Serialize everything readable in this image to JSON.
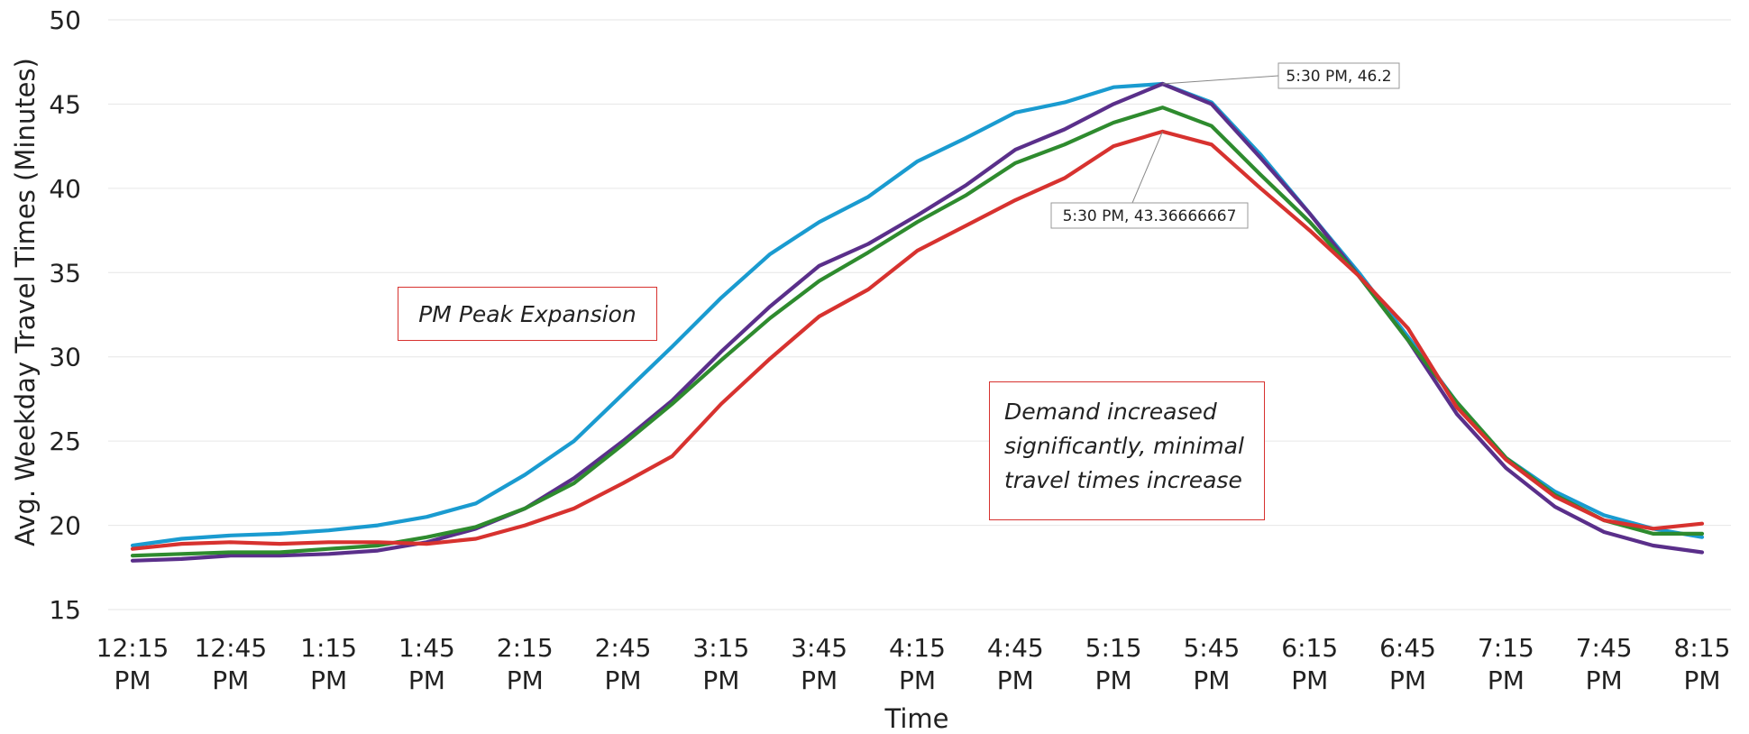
{
  "chart_data": {
    "type": "line",
    "title": "",
    "xlabel": "Time",
    "ylabel": "Avg. Weekday Travel Times (Minutes)",
    "ylim": [
      15,
      50
    ],
    "yticks": [
      15,
      20,
      25,
      30,
      35,
      40,
      45,
      50
    ],
    "grid": true,
    "x": [
      "12:15 PM",
      "12:30 PM",
      "12:45 PM",
      "1:00 PM",
      "1:15 PM",
      "1:30 PM",
      "1:45 PM",
      "2:00 PM",
      "2:15 PM",
      "2:30 PM",
      "2:45 PM",
      "3:00 PM",
      "3:15 PM",
      "3:30 PM",
      "3:45 PM",
      "4:00 PM",
      "4:15 PM",
      "4:30 PM",
      "4:45 PM",
      "5:00 PM",
      "5:15 PM",
      "5:30 PM",
      "5:45 PM",
      "6:00 PM",
      "6:15 PM",
      "6:30 PM",
      "6:45 PM",
      "7:00 PM",
      "7:15 PM",
      "7:30 PM",
      "7:45 PM",
      "8:00 PM",
      "8:15 PM"
    ],
    "xtick_labels": [
      {
        "line1": "12:15",
        "line2": "PM"
      },
      {
        "line1": "12:45",
        "line2": "PM"
      },
      {
        "line1": "1:15",
        "line2": "PM"
      },
      {
        "line1": "1:45",
        "line2": "PM"
      },
      {
        "line1": "2:15",
        "line2": "PM"
      },
      {
        "line1": "2:45",
        "line2": "PM"
      },
      {
        "line1": "3:15",
        "line2": "PM"
      },
      {
        "line1": "3:45",
        "line2": "PM"
      },
      {
        "line1": "4:15",
        "line2": "PM"
      },
      {
        "line1": "4:45",
        "line2": "PM"
      },
      {
        "line1": "5:15",
        "line2": "PM"
      },
      {
        "line1": "5:45",
        "line2": "PM"
      },
      {
        "line1": "6:15",
        "line2": "PM"
      },
      {
        "line1": "6:45",
        "line2": "PM"
      },
      {
        "line1": "7:15",
        "line2": "PM"
      },
      {
        "line1": "7:45",
        "line2": "PM"
      },
      {
        "line1": "8:15",
        "line2": "PM"
      }
    ],
    "series": [
      {
        "color": "#1a9bd0",
        "values": [
          18.8,
          19.2,
          19.4,
          19.5,
          19.7,
          20.0,
          20.5,
          21.3,
          23.0,
          25.0,
          27.8,
          30.6,
          33.5,
          36.1,
          38.0,
          39.5,
          41.6,
          43.0,
          44.5,
          45.1,
          46.0,
          46.2,
          45.1,
          42.0,
          38.5,
          35.0,
          31.2,
          27.3,
          24.0,
          22.0,
          20.6,
          19.8,
          19.3
        ]
      },
      {
        "color": "#5a2f8a",
        "values": [
          17.9,
          18.0,
          18.2,
          18.2,
          18.3,
          18.5,
          19.0,
          19.8,
          21.0,
          22.8,
          25.0,
          27.4,
          30.3,
          33.0,
          35.4,
          36.7,
          38.4,
          40.2,
          42.3,
          43.5,
          45.0,
          46.2,
          45.0,
          41.8,
          38.5,
          34.8,
          31.0,
          26.6,
          23.4,
          21.1,
          19.6,
          18.8,
          18.4
        ]
      },
      {
        "color": "#2e8b2e",
        "values": [
          18.2,
          18.3,
          18.4,
          18.4,
          18.6,
          18.8,
          19.3,
          19.9,
          21.0,
          22.5,
          24.8,
          27.2,
          29.8,
          32.3,
          34.5,
          36.2,
          38.0,
          39.6,
          41.5,
          42.6,
          43.9,
          44.8,
          43.7,
          40.8,
          38.0,
          34.8,
          31.0,
          27.3,
          24.0,
          21.8,
          20.3,
          19.5,
          19.5
        ]
      },
      {
        "color": "#d7322f",
        "values": [
          18.6,
          18.9,
          19.0,
          18.9,
          19.0,
          19.0,
          18.9,
          19.2,
          20.0,
          21.0,
          22.5,
          24.1,
          27.2,
          29.9,
          32.4,
          34.0,
          36.3,
          37.8,
          39.3,
          40.6,
          42.5,
          43.37,
          42.6,
          40.0,
          37.5,
          34.8,
          31.7,
          27.0,
          23.9,
          21.7,
          20.3,
          19.8,
          20.1
        ]
      }
    ],
    "annotations": [
      {
        "text": "5:30 PM, 46.2",
        "x": "5:30 PM",
        "y": 46.2
      },
      {
        "text": "5:30 PM, 43.36666667",
        "x": "5:30 PM",
        "y": 43.37
      }
    ],
    "notes": [
      {
        "text": "PM Peak Expansion"
      },
      {
        "text": "Demand increased\nsignificantly, minimal\ntravel times increase"
      }
    ]
  }
}
